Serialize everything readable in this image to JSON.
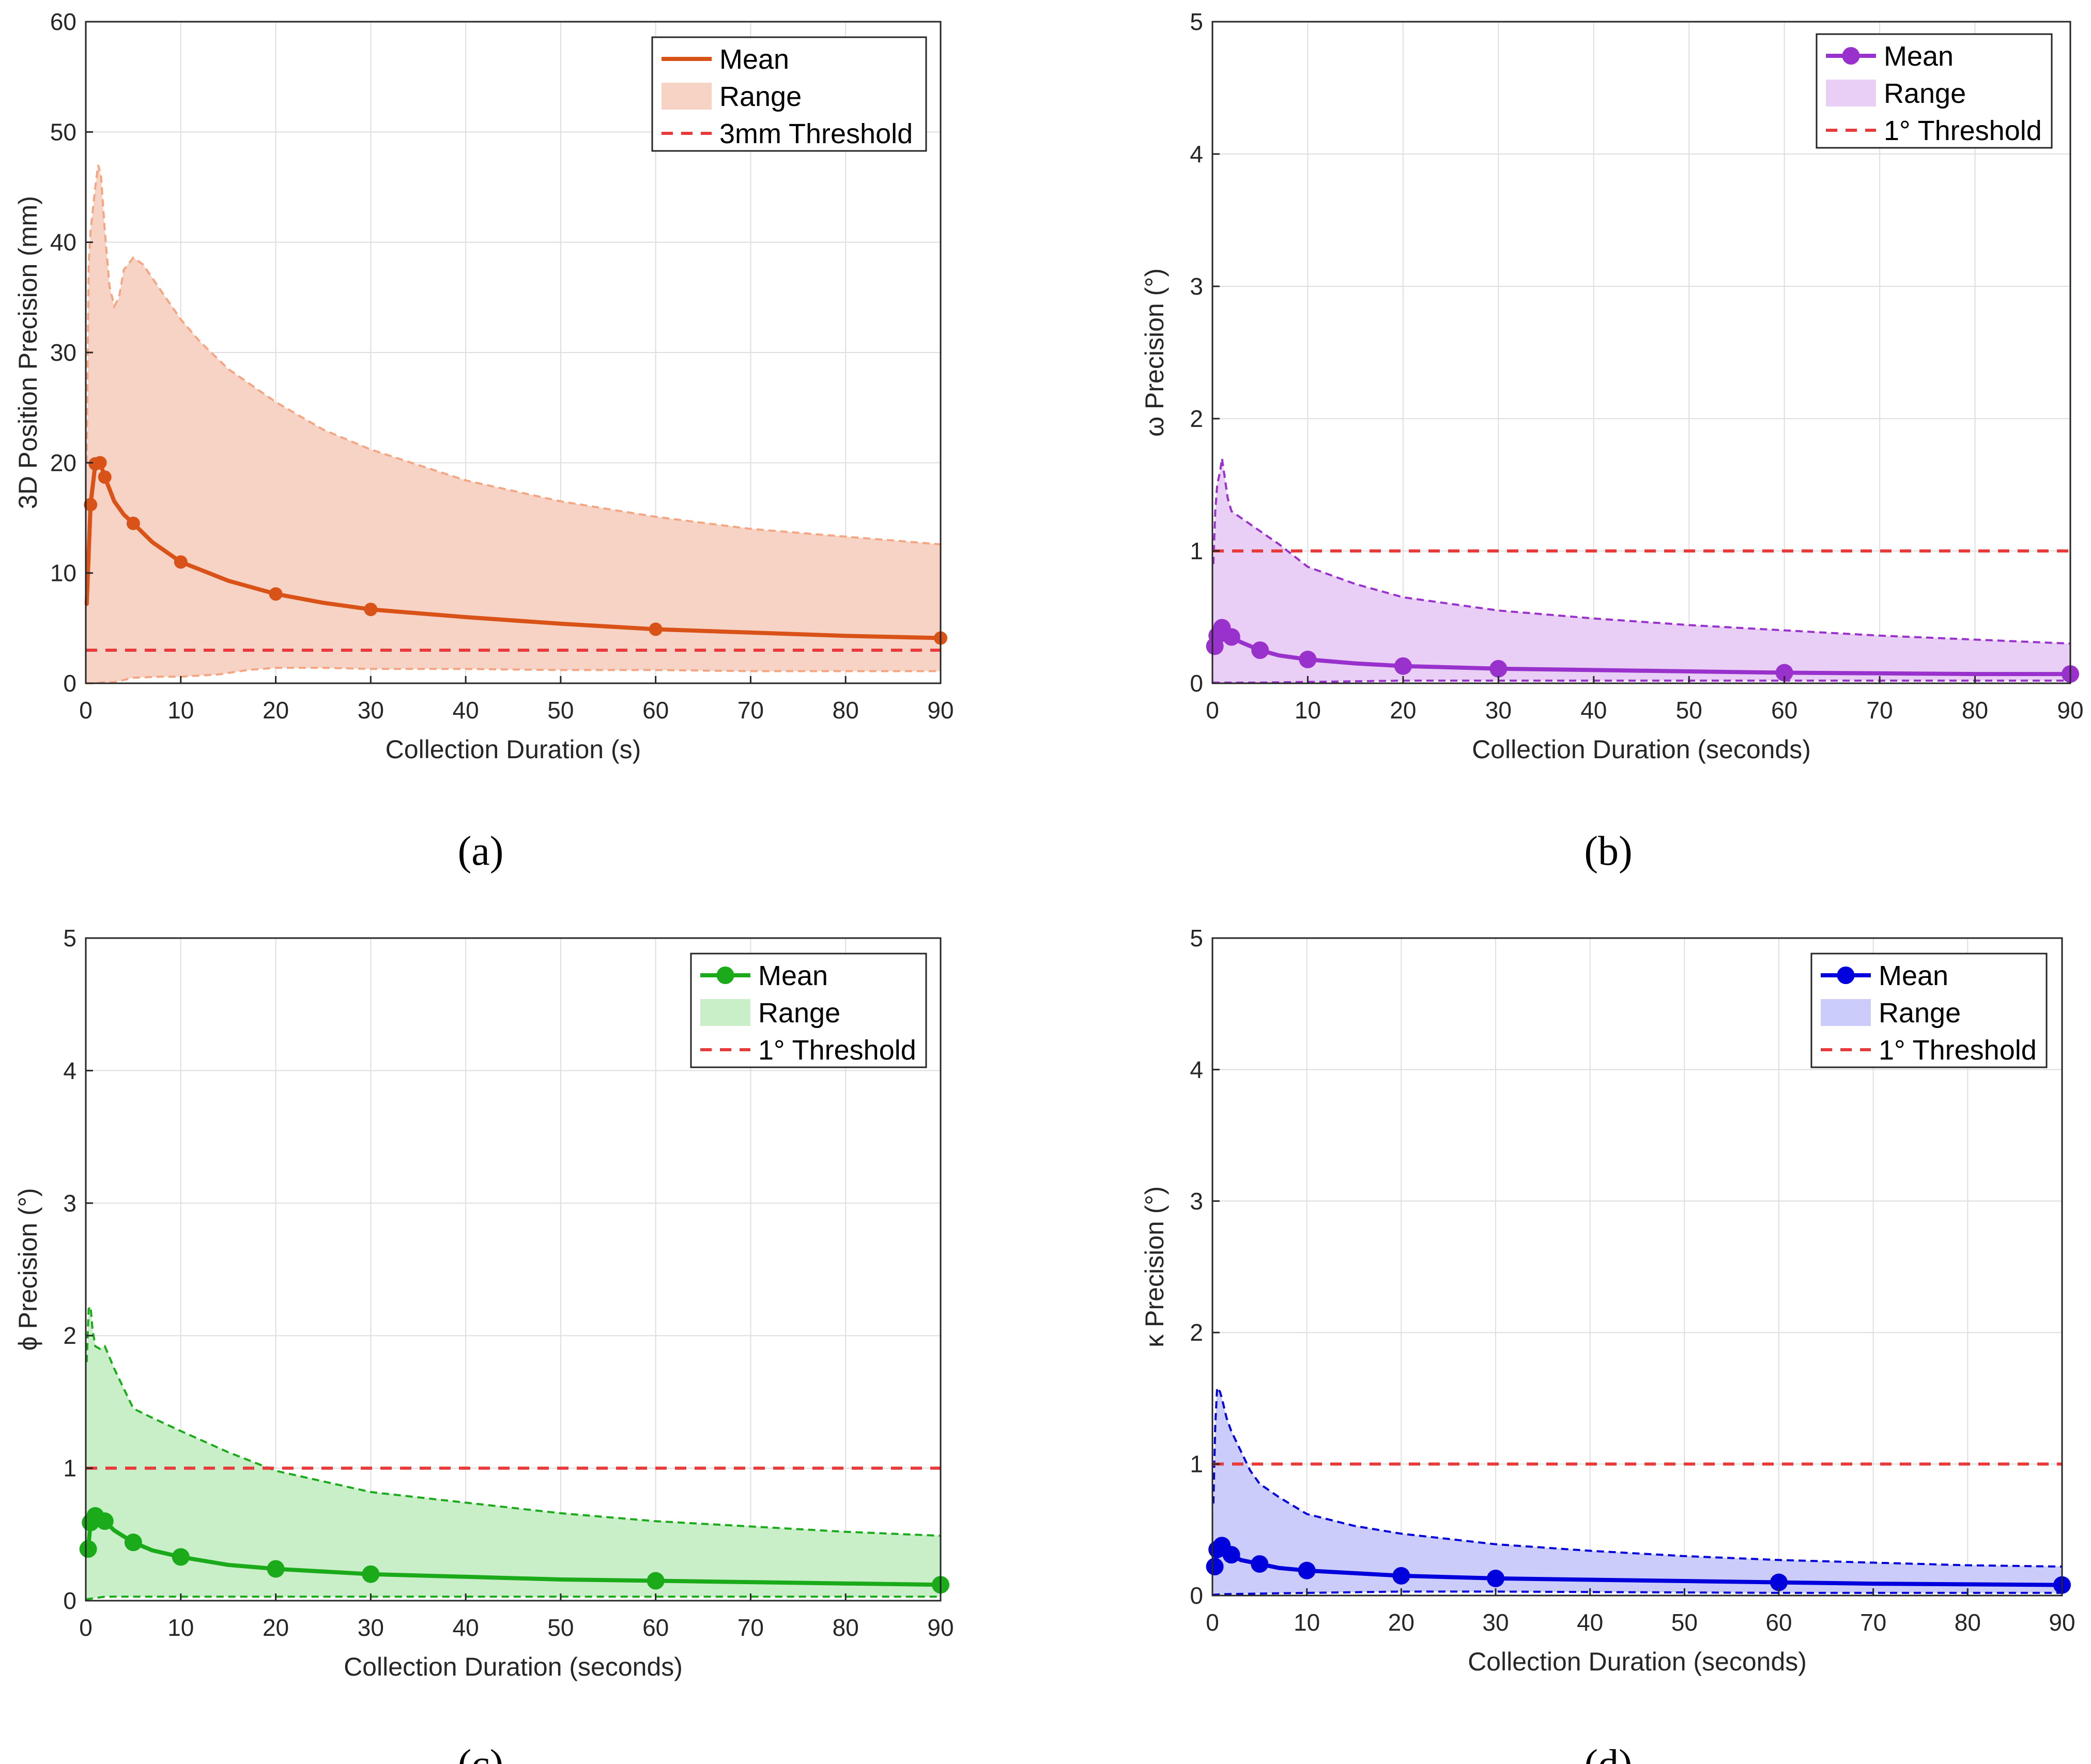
{
  "figure": {
    "captions": [
      "(a)",
      "(b)",
      "(c)",
      "(d)"
    ]
  },
  "chart_data": [
    {
      "type": "line",
      "panel": "a",
      "caption": "(a)",
      "xlabel": "Collection Duration (s)",
      "ylabel": "3D Position Precision (mm)",
      "xlim": [
        0,
        90
      ],
      "ylim": [
        0,
        60
      ],
      "xticks": [
        0,
        10,
        20,
        30,
        40,
        50,
        60,
        70,
        80,
        90
      ],
      "yticks": [
        0,
        10,
        20,
        30,
        40,
        50,
        60
      ],
      "color_line": "#d95319",
      "color_fill": "#f6d3c5",
      "color_bound": "#f4a582",
      "threshold": 3,
      "threshold_color": "#e83a3a",
      "marker_size": "small",
      "mean": {
        "x": [
          0.1,
          0.5,
          1,
          1.5,
          2,
          3,
          4,
          5,
          7,
          10,
          15,
          20,
          25,
          30,
          40,
          50,
          60,
          70,
          80,
          90
        ],
        "y": [
          7.2,
          16.2,
          19.9,
          20.0,
          18.7,
          16.5,
          15.3,
          14.5,
          12.8,
          11.0,
          9.3,
          8.1,
          7.3,
          6.7,
          6.0,
          5.4,
          4.9,
          4.6,
          4.3,
          4.1
        ]
      },
      "markers": {
        "x": [
          0.5,
          1,
          1.5,
          2,
          5,
          10,
          20,
          30,
          60,
          90
        ],
        "y": [
          16.2,
          19.9,
          20.0,
          18.7,
          14.5,
          11.0,
          8.1,
          6.7,
          4.9,
          4.1
        ]
      },
      "upper": {
        "x": [
          0.1,
          0.3,
          0.5,
          1,
          1.3,
          1.6,
          2,
          2.5,
          3,
          3.5,
          4,
          5,
          6,
          8,
          10,
          12,
          15,
          20,
          25,
          30,
          40,
          50,
          60,
          70,
          80,
          90
        ],
        "y": [
          20,
          38,
          41,
          45,
          47,
          46,
          41,
          36,
          34.2,
          35,
          37.5,
          38.6,
          38,
          35.5,
          33,
          31,
          28.5,
          25.5,
          23,
          21.2,
          18.4,
          16.5,
          15.1,
          14,
          13.3,
          12.6
        ]
      },
      "lower": {
        "x": [
          0,
          0.5,
          1,
          2,
          3,
          5,
          8,
          10,
          14,
          17,
          20,
          25,
          30,
          40,
          50,
          60,
          70,
          80,
          90
        ],
        "y": [
          0,
          0,
          0,
          0.1,
          0.1,
          0.5,
          0.6,
          0.6,
          0.8,
          1.2,
          1.4,
          1.4,
          1.3,
          1.3,
          1.2,
          1.2,
          1.1,
          1.1,
          1.1
        ]
      },
      "legend": {
        "position": "top-right",
        "entries": [
          "Mean",
          "Range",
          "3mm Threshold"
        ]
      }
    },
    {
      "type": "line",
      "panel": "b",
      "caption": "(b)",
      "xlabel": "Collection Duration (seconds)",
      "ylabel": "ω Precision (°)",
      "xlim": [
        0,
        90
      ],
      "ylim": [
        0,
        5
      ],
      "xticks": [
        0,
        10,
        20,
        30,
        40,
        50,
        60,
        70,
        80,
        90
      ],
      "yticks": [
        0,
        1,
        2,
        3,
        4,
        5
      ],
      "color_line": "#9932cc",
      "color_fill": "#e9cff5",
      "color_bound": "#9932cc",
      "threshold": 1,
      "threshold_color": "#e83a3a",
      "marker_size": "large",
      "mean": {
        "x": [
          0.25,
          0.5,
          1,
          1.5,
          2,
          3,
          5,
          7,
          10,
          15,
          20,
          30,
          40,
          50,
          60,
          70,
          80,
          90
        ],
        "y": [
          0.28,
          0.36,
          0.42,
          0.39,
          0.35,
          0.31,
          0.25,
          0.21,
          0.18,
          0.15,
          0.13,
          0.11,
          0.1,
          0.09,
          0.08,
          0.075,
          0.07,
          0.07
        ]
      },
      "markers": {
        "x": [
          0.25,
          0.5,
          1,
          2,
          5,
          10,
          20,
          30,
          60,
          90
        ],
        "y": [
          0.28,
          0.36,
          0.42,
          0.35,
          0.25,
          0.18,
          0.13,
          0.11,
          0.08,
          0.07
        ]
      },
      "upper": {
        "x": [
          0.1,
          0.3,
          0.5,
          0.8,
          1,
          1.3,
          1.6,
          2,
          3,
          5,
          7,
          10,
          15,
          20,
          30,
          40,
          50,
          60,
          70,
          80,
          90
        ],
        "y": [
          0.9,
          1.3,
          1.5,
          1.6,
          1.7,
          1.55,
          1.4,
          1.3,
          1.25,
          1.15,
          1.05,
          0.88,
          0.75,
          0.65,
          0.55,
          0.49,
          0.44,
          0.4,
          0.36,
          0.33,
          0.3
        ]
      },
      "lower": {
        "x": [
          0,
          5,
          10,
          20,
          30,
          40,
          60,
          90
        ],
        "y": [
          0.005,
          0.005,
          0.01,
          0.02,
          0.02,
          0.02,
          0.02,
          0.02
        ]
      },
      "legend": {
        "position": "top-right",
        "entries": [
          "Mean",
          "Range",
          "1° Threshold"
        ]
      }
    },
    {
      "type": "line",
      "panel": "c",
      "caption": "(c)",
      "xlabel": "Collection Duration (seconds)",
      "ylabel": "ϕ Precision (°)",
      "xlim": [
        0,
        90
      ],
      "ylim": [
        0,
        5
      ],
      "xticks": [
        0,
        10,
        20,
        30,
        40,
        50,
        60,
        70,
        80,
        90
      ],
      "yticks": [
        0,
        1,
        2,
        3,
        4,
        5
      ],
      "color_line": "#1aaa1a",
      "color_fill": "#c9efc9",
      "color_bound": "#1aaa1a",
      "threshold": 1,
      "threshold_color": "#e83a3a",
      "marker_size": "large",
      "mean": {
        "x": [
          0.25,
          0.5,
          1,
          1.5,
          2,
          3,
          5,
          7,
          10,
          15,
          20,
          30,
          40,
          50,
          60,
          70,
          80,
          90
        ],
        "y": [
          0.39,
          0.59,
          0.64,
          0.62,
          0.6,
          0.53,
          0.44,
          0.38,
          0.33,
          0.27,
          0.24,
          0.2,
          0.18,
          0.16,
          0.15,
          0.14,
          0.13,
          0.12
        ]
      },
      "markers": {
        "x": [
          0.25,
          0.5,
          1,
          2,
          5,
          10,
          20,
          30,
          60,
          90
        ],
        "y": [
          0.39,
          0.59,
          0.64,
          0.6,
          0.44,
          0.33,
          0.24,
          0.2,
          0.15,
          0.12
        ]
      },
      "upper": {
        "x": [
          0.1,
          0.3,
          0.5,
          0.7,
          1,
          1.5,
          2,
          3,
          5,
          7,
          10,
          15,
          20,
          25,
          30,
          40,
          50,
          60,
          70,
          80,
          90
        ],
        "y": [
          1.8,
          2.2,
          2.22,
          2.05,
          1.92,
          1.9,
          1.92,
          1.75,
          1.45,
          1.38,
          1.28,
          1.12,
          0.98,
          0.9,
          0.82,
          0.74,
          0.66,
          0.6,
          0.56,
          0.52,
          0.49
        ]
      },
      "lower": {
        "x": [
          0,
          1,
          2,
          5,
          10,
          20,
          30,
          60,
          90
        ],
        "y": [
          0.01,
          0.02,
          0.03,
          0.03,
          0.03,
          0.03,
          0.03,
          0.03,
          0.03
        ]
      },
      "legend": {
        "position": "top-right",
        "entries": [
          "Mean",
          "Range",
          "1° Threshold"
        ]
      }
    },
    {
      "type": "line",
      "panel": "d",
      "caption": "(d)",
      "xlabel": "Collection Duration (seconds)",
      "ylabel": "κ Precision (°)",
      "xlim": [
        0,
        90
      ],
      "ylim": [
        0,
        5
      ],
      "xticks": [
        0,
        10,
        20,
        30,
        40,
        50,
        60,
        70,
        80,
        90
      ],
      "yticks": [
        0,
        1,
        2,
        3,
        4,
        5
      ],
      "color_line": "#0000dd",
      "color_fill": "#ccccfa",
      "color_bound": "#0000dd",
      "threshold": 1,
      "threshold_color": "#e83a3a",
      "marker_size": "large",
      "mean": {
        "x": [
          0.25,
          0.5,
          1,
          1.5,
          2,
          3,
          5,
          7,
          10,
          15,
          20,
          30,
          40,
          50,
          60,
          70,
          80,
          90
        ],
        "y": [
          0.22,
          0.35,
          0.38,
          0.34,
          0.31,
          0.27,
          0.24,
          0.21,
          0.19,
          0.17,
          0.15,
          0.13,
          0.12,
          0.11,
          0.1,
          0.09,
          0.085,
          0.08
        ]
      },
      "markers": {
        "x": [
          0.25,
          0.5,
          1,
          2,
          5,
          10,
          20,
          30,
          60,
          90
        ],
        "y": [
          0.22,
          0.35,
          0.38,
          0.31,
          0.24,
          0.19,
          0.15,
          0.13,
          0.1,
          0.08
        ]
      },
      "upper": {
        "x": [
          0.1,
          0.3,
          0.5,
          0.8,
          1,
          1.5,
          2,
          3,
          4,
          5,
          7,
          10,
          15,
          20,
          30,
          40,
          50,
          60,
          70,
          80,
          90
        ],
        "y": [
          0.7,
          1.3,
          1.58,
          1.55,
          1.5,
          1.35,
          1.25,
          1.1,
          0.95,
          0.85,
          0.75,
          0.62,
          0.53,
          0.47,
          0.39,
          0.34,
          0.3,
          0.27,
          0.25,
          0.23,
          0.22
        ]
      },
      "lower": {
        "x": [
          0,
          1,
          5,
          10,
          20,
          30,
          60,
          90
        ],
        "y": [
          0.005,
          0.01,
          0.015,
          0.02,
          0.03,
          0.03,
          0.02,
          0.02
        ]
      },
      "legend": {
        "position": "top-right",
        "entries": [
          "Mean",
          "Range",
          "1° Threshold"
        ]
      }
    }
  ]
}
